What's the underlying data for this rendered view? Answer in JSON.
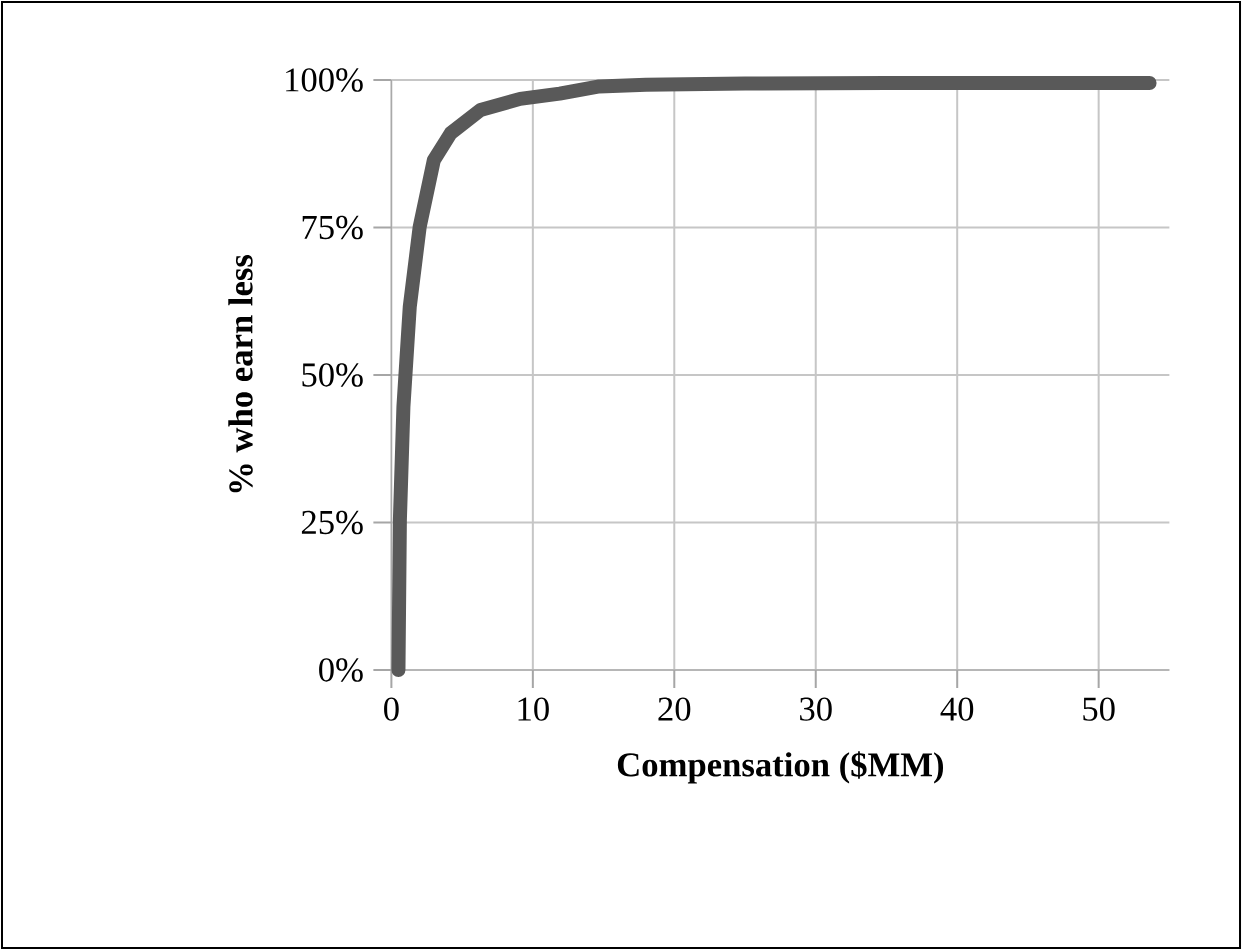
{
  "chart_data": {
    "type": "line",
    "xlabel": "Compensation ($MM)",
    "ylabel": "% who earn less",
    "x": [
      0.5,
      0.6,
      0.85,
      1.3,
      2.0,
      3.0,
      4.2,
      6.3,
      9.1,
      11.9,
      14.7,
      18,
      25,
      35,
      45,
      53.6
    ],
    "series": [
      {
        "color": "#595959",
        "values": [
          0,
          25.4,
          44.6,
          61.6,
          75.1,
          86.4,
          91,
          94.9,
          96.8,
          97.7,
          98.9,
          99.2,
          99.4,
          99.5,
          99.5,
          99.5
        ]
      }
    ],
    "xlim": [
      0,
      55
    ],
    "xticks": [
      0,
      10,
      20,
      30,
      40,
      50
    ],
    "ylim": [
      0,
      100
    ],
    "yticks": [
      {
        "value": 0,
        "label": "0%"
      },
      {
        "value": 25,
        "label": "25%"
      },
      {
        "value": 50,
        "label": "50%"
      },
      {
        "value": 75,
        "label": "75%"
      },
      {
        "value": 100,
        "label": "100%"
      }
    ],
    "grid": true,
    "marker": "none",
    "line_style": "solid"
  }
}
